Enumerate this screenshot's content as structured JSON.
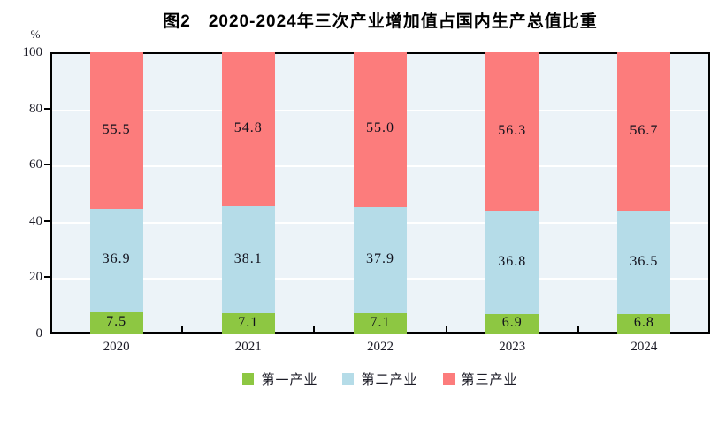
{
  "chart_data": {
    "type": "bar",
    "stacked": true,
    "title": "图2　2020-2024年三次产业增加值占国内生产总值比重",
    "unit_label": "%",
    "categories": [
      "2020",
      "2021",
      "2022",
      "2023",
      "2024"
    ],
    "series": [
      {
        "name": "第一产业",
        "color": "#8dc742",
        "values": [
          7.5,
          7.1,
          7.1,
          6.9,
          6.8
        ]
      },
      {
        "name": "第二产业",
        "color": "#b5dce8",
        "values": [
          36.9,
          38.1,
          37.9,
          36.8,
          36.5
        ]
      },
      {
        "name": "第三产业",
        "color": "#fc7c7c",
        "values": [
          55.5,
          54.8,
          55.0,
          56.3,
          56.7
        ]
      }
    ],
    "ylim": [
      0,
      100
    ],
    "yticks": [
      0,
      20,
      40,
      60,
      80,
      100
    ],
    "grid": true,
    "legend_position": "bottom",
    "plot_background": "#ecf3f8",
    "gridline_color": "#ffffff",
    "border_color": "#000000"
  }
}
